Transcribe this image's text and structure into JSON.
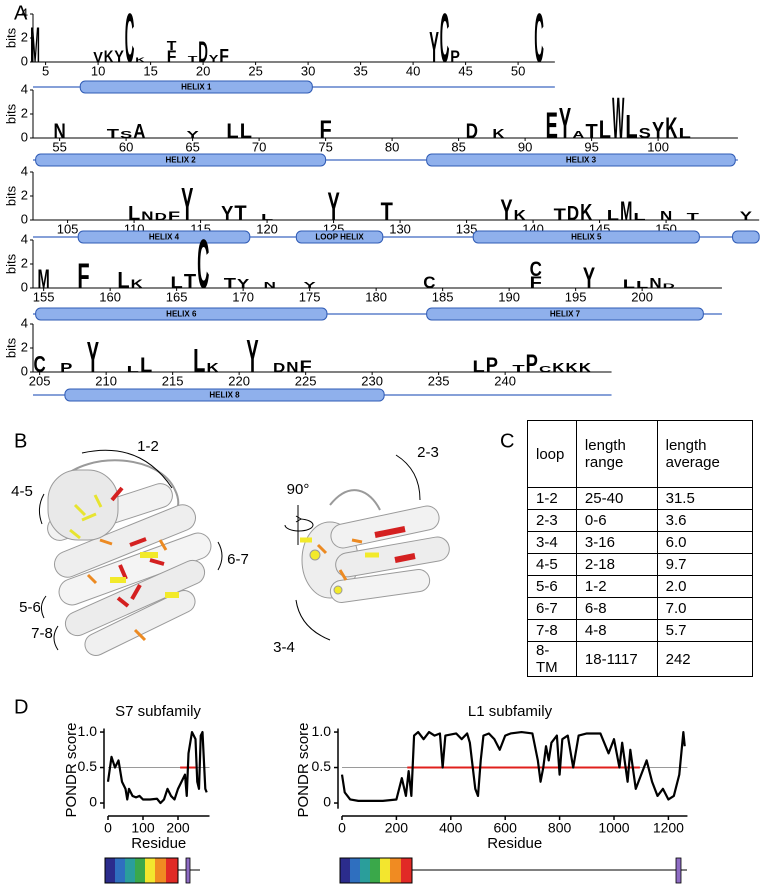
{
  "panel_a": {
    "label": "A",
    "y_label": "bits",
    "ylim": [
      0,
      4
    ],
    "yticks": [
      0,
      2,
      4
    ],
    "letter_colors": {
      "M": "#000000",
      "V": "#000000",
      "F": "#000000",
      "L": "#000000",
      "A": "#000000",
      "W": "#000000",
      "P": "#000000",
      "I": "#000000",
      "K": "#1c2fd6",
      "D": "#e1141a",
      "E": "#e1141a",
      "N": "#9a1aa3",
      "C": "#1f9a37",
      "Y": "#1f9a37",
      "T": "#1f9a37",
      "S": "#1f9a37"
    },
    "rows": [
      {
        "xlim": [
          3.8,
          53.5
        ],
        "xticks": [
          5,
          10,
          15,
          20,
          25,
          30,
          35,
          40,
          45,
          50
        ],
        "letters": [
          [
            4,
            "M",
            3.0
          ],
          [
            10,
            "V",
            0.9
          ],
          [
            11,
            "K",
            1.0
          ],
          [
            12,
            "Y",
            1.0
          ],
          [
            13,
            "C",
            4.2
          ],
          [
            14,
            "K",
            0.4
          ],
          [
            17,
            "F",
            1.0
          ],
          [
            17,
            "T",
            0.8
          ],
          [
            19,
            "T",
            0.5
          ],
          [
            20,
            "D",
            1.8
          ],
          [
            21,
            "Y",
            0.6
          ],
          [
            22,
            "F",
            1.1
          ],
          [
            42,
            "Y",
            2.6
          ],
          [
            43,
            "C",
            4.2
          ],
          [
            44,
            "P",
            1.0
          ],
          [
            52,
            "C",
            4.2
          ]
        ],
        "helices": [
          {
            "label": "HELIX 1",
            "start": 8.3,
            "end": 30.4
          }
        ]
      },
      {
        "xlim": [
          53,
          106
        ],
        "xticks": [
          55,
          60,
          65,
          70,
          75,
          80,
          85,
          90,
          95,
          100
        ],
        "letters": [
          [
            55,
            "N",
            1.3
          ],
          [
            59,
            "T",
            0.8
          ],
          [
            60,
            "S",
            0.6
          ],
          [
            61,
            "A",
            1.2
          ],
          [
            65,
            "Y",
            0.6
          ],
          [
            68,
            "L",
            1.3
          ],
          [
            69,
            "L",
            1.3
          ],
          [
            75,
            "F",
            1.5
          ],
          [
            86,
            "D",
            1.3
          ],
          [
            88,
            "K",
            0.8
          ],
          [
            92,
            "E",
            2.2
          ],
          [
            93,
            "Y",
            2.6
          ],
          [
            94,
            "A",
            0.6
          ],
          [
            95,
            "T",
            1.2
          ],
          [
            96,
            "L",
            1.5
          ],
          [
            97,
            "W",
            3.5
          ],
          [
            98,
            "L",
            2.0
          ],
          [
            99,
            "S",
            0.9
          ],
          [
            100,
            "Y",
            1.4
          ],
          [
            101,
            "K",
            1.8
          ],
          [
            102,
            "L",
            0.9
          ]
        ],
        "helices": [
          {
            "label": "HELIX 2",
            "start": 53.2,
            "end": 75
          },
          {
            "label": "HELIX 3",
            "start": 82.6,
            "end": 105.8
          }
        ]
      },
      {
        "xlim": [
          102.4,
          157
        ],
        "xticks": [
          105,
          110,
          115,
          120,
          125,
          130,
          135,
          140,
          145,
          150
        ],
        "letters": [
          [
            110,
            "L",
            1.2
          ],
          [
            111,
            "N",
            0.7
          ],
          [
            112,
            "D",
            0.6
          ],
          [
            113,
            "F",
            0.7
          ],
          [
            114,
            "Y",
            2.8
          ],
          [
            117,
            "Y",
            1.2
          ],
          [
            118,
            "T",
            1.3
          ],
          [
            120,
            "L",
            0.5
          ],
          [
            125,
            "Y",
            2.4
          ],
          [
            129,
            "T",
            1.5
          ],
          [
            138,
            "Y",
            1.8
          ],
          [
            139,
            "K",
            0.9
          ],
          [
            142,
            "T",
            1.0
          ],
          [
            143,
            "D",
            1.2
          ],
          [
            144,
            "K",
            1.4
          ],
          [
            146,
            "L",
            0.9
          ],
          [
            147,
            "M",
            1.6
          ],
          [
            148,
            "L",
            0.6
          ],
          [
            150,
            "N",
            0.8
          ],
          [
            152,
            "T",
            0.6
          ],
          [
            156,
            "Y",
            0.7
          ]
        ],
        "helices": [
          {
            "label": "HELIX 4",
            "start": 105.8,
            "end": 118.7
          },
          {
            "label": "LOOP HELIX",
            "start": 122.2,
            "end": 128.7
          },
          {
            "label": "HELIX 5",
            "start": 135.5,
            "end": 152.5
          },
          {
            "start": 155,
            "end": 157
          }
        ]
      },
      {
        "xlim": [
          154.2,
          206
        ],
        "xticks": [
          155,
          160,
          165,
          170,
          175,
          180,
          185,
          190,
          195,
          200
        ],
        "letters": [
          [
            155,
            "M",
            1.6
          ],
          [
            158,
            "F",
            2.1
          ],
          [
            161,
            "L",
            1.4
          ],
          [
            162,
            "K",
            0.7
          ],
          [
            165,
            "L",
            1.0
          ],
          [
            166,
            "T",
            1.2
          ],
          [
            167,
            "C",
            4.2
          ],
          [
            169,
            "T",
            0.9
          ],
          [
            170,
            "Y",
            0.8
          ],
          [
            172,
            "N",
            0.5
          ],
          [
            175,
            "Y",
            0.5
          ],
          [
            184,
            "C",
            1.0
          ],
          [
            192,
            "F",
            1.0
          ],
          [
            192,
            "C",
            1.3
          ],
          [
            196,
            "Y",
            1.8
          ],
          [
            199,
            "L",
            0.7
          ],
          [
            200,
            "L",
            0.6
          ],
          [
            201,
            "N",
            0.9
          ],
          [
            202,
            "D",
            0.4
          ]
        ],
        "helices": [
          {
            "label": "HELIX 6",
            "start": 154.4,
            "end": 176.3
          },
          {
            "label": "HELIX 7",
            "start": 183.8,
            "end": 204.6
          }
        ]
      },
      {
        "xlim": [
          204.5,
          248
        ],
        "xticks": [
          205,
          210,
          215,
          220,
          225,
          230,
          235,
          240
        ],
        "letters": [
          [
            205,
            "C",
            1.4
          ],
          [
            207,
            "P",
            0.8
          ],
          [
            209,
            "Y",
            2.6
          ],
          [
            212,
            "L",
            0.5
          ],
          [
            213,
            "L",
            1.3
          ],
          [
            217,
            "L",
            2.0
          ],
          [
            218,
            "K",
            0.8
          ],
          [
            221,
            "Y",
            2.8
          ],
          [
            223,
            "D",
            0.8
          ],
          [
            224,
            "N",
            0.9
          ],
          [
            225,
            "F",
            1.0
          ],
          [
            238,
            "L",
            1.0
          ],
          [
            239,
            "P",
            1.3
          ],
          [
            241,
            "T",
            0.6
          ],
          [
            242,
            "P",
            1.5
          ],
          [
            243,
            "C",
            0.5
          ],
          [
            244,
            "K",
            0.8
          ],
          [
            245,
            "K",
            0.8
          ],
          [
            246,
            "K",
            0.8
          ]
        ],
        "helices": [
          {
            "label": "HELIX 8",
            "start": 206.9,
            "end": 230.9
          }
        ]
      }
    ]
  },
  "panel_b": {
    "label": "B",
    "loops_left": [
      "1-2",
      "4-5",
      "6-7",
      "5-6",
      "7-8"
    ],
    "rotation": "90°",
    "loops_right": [
      "2-3",
      "3-4"
    ]
  },
  "panel_c": {
    "label": "C",
    "header": [
      "loop",
      "length range",
      "length average"
    ],
    "rows": [
      [
        "1-2",
        "25-40",
        "31.5"
      ],
      [
        "2-3",
        "0-6",
        "3.6"
      ],
      [
        "3-4",
        "3-16",
        "6.0"
      ],
      [
        "4-5",
        "2-18",
        "9.7"
      ],
      [
        "5-6",
        "1-2",
        "2.0"
      ],
      [
        "6-7",
        "6-8",
        "7.0"
      ],
      [
        "7-8",
        "4-8",
        "5.7"
      ],
      [
        "8-TM",
        "18-1117",
        "242"
      ]
    ]
  },
  "panel_d": {
    "label": "D",
    "charts": [
      {
        "type": "line",
        "title": "S7 subfamily",
        "x_label": "Residue",
        "y_label": "PONDR score",
        "color": "#000000",
        "xlim": [
          0,
          290
        ],
        "xticks": [
          0,
          100,
          200
        ],
        "ylim": [
          -0.08,
          1.05
        ],
        "yticks": [
          0,
          0.5,
          {
            "value": 1,
            "label": "1.0"
          }
        ],
        "threshold": 0.5,
        "red_segment": [
          206,
          250
        ],
        "x": [
          0,
          10,
          20,
          30,
          40,
          50,
          55,
          60,
          70,
          80,
          90,
          100,
          120,
          140,
          150,
          160,
          170,
          180,
          190,
          200,
          210,
          220,
          225,
          230,
          240,
          250,
          255,
          260,
          265,
          270,
          278,
          282
        ],
        "values": [
          0.3,
          0.65,
          0.5,
          0.6,
          0.3,
          0.2,
          0.05,
          0.2,
          0.1,
          0.08,
          0.1,
          0.05,
          0.05,
          0.06,
          0.0,
          0.05,
          0.2,
          0.1,
          0.05,
          0.2,
          0.3,
          0.4,
          0.1,
          0.7,
          1.0,
          0.9,
          0.3,
          0.2,
          0.95,
          1.0,
          0.2,
          0.15
        ]
      },
      {
        "type": "line",
        "title": "L1 subfamily",
        "x_label": "Residue",
        "y_label": "PONDR score",
        "color": "#000000",
        "xlim": [
          0,
          1270
        ],
        "xticks": [
          0,
          200,
          400,
          600,
          800,
          1000,
          1200
        ],
        "ylim": [
          -0.08,
          1.05
        ],
        "yticks": [
          0,
          0.5,
          {
            "value": 1,
            "label": "1.0"
          }
        ],
        "threshold": 0.5,
        "red_segment": [
          240,
          1095
        ],
        "x": [
          0,
          10,
          30,
          60,
          150,
          200,
          220,
          235,
          245,
          255,
          265,
          280,
          300,
          320,
          340,
          360,
          370,
          380,
          420,
          440,
          460,
          470,
          490,
          500,
          510,
          520,
          540,
          560,
          580,
          600,
          620,
          660,
          700,
          720,
          730,
          740,
          750,
          760,
          770,
          790,
          800,
          810,
          830,
          850,
          870,
          900,
          950,
          980,
          1000,
          1020,
          1030,
          1050,
          1060,
          1080,
          1100,
          1120,
          1140,
          1160,
          1180,
          1200,
          1220,
          1240,
          1255,
          1260
        ],
        "values": [
          0.4,
          0.15,
          0.05,
          0.03,
          0.03,
          0.05,
          0.35,
          0.1,
          0.45,
          0.1,
          0.95,
          1.0,
          0.9,
          1.0,
          0.95,
          0.98,
          0.5,
          0.95,
          0.98,
          0.9,
          0.98,
          0.85,
          0.2,
          0.1,
          0.6,
          0.95,
          0.98,
          0.9,
          0.75,
          0.95,
          0.98,
          1.0,
          0.98,
          0.6,
          0.3,
          0.5,
          0.8,
          0.6,
          0.85,
          0.95,
          0.4,
          0.9,
          0.95,
          0.5,
          0.95,
          0.98,
          0.98,
          0.7,
          0.9,
          0.5,
          0.85,
          0.3,
          0.75,
          0.2,
          0.4,
          0.6,
          0.3,
          0.1,
          0.2,
          0.05,
          0.1,
          0.4,
          1.0,
          0.8
        ]
      }
    ]
  }
}
